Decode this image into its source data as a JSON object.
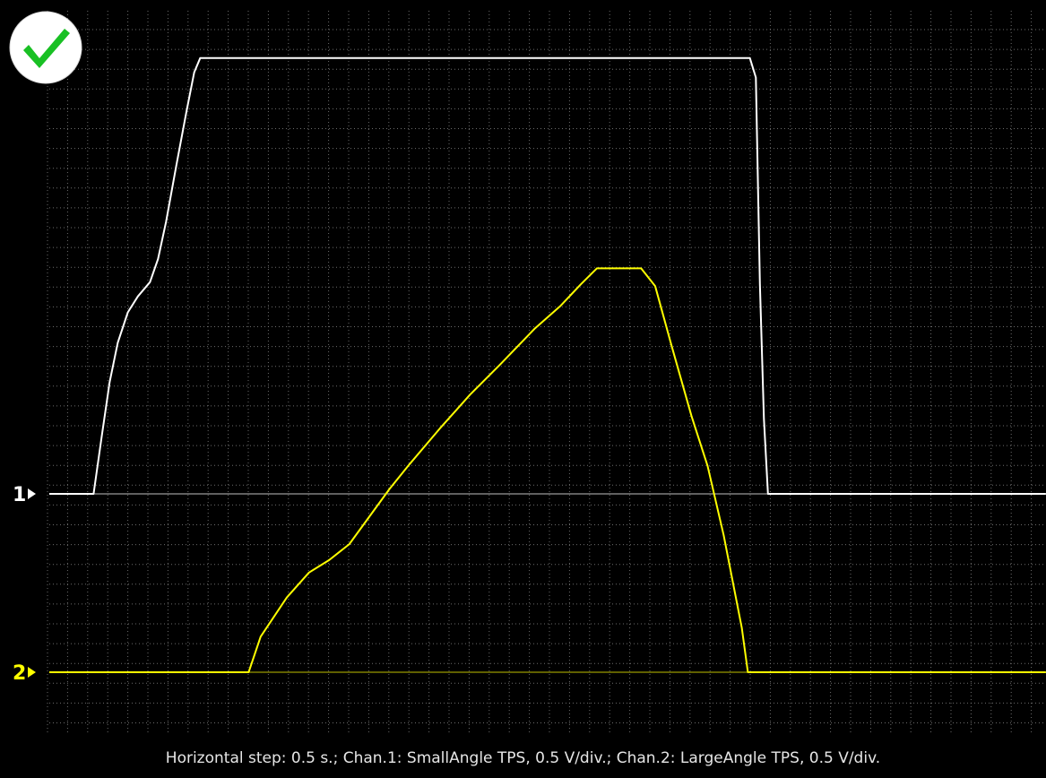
{
  "status": {
    "icon": "checkmark-icon",
    "icon_color": "#19c024",
    "icon_background": "#ffffff"
  },
  "caption": "Horizontal step: 0.5 s.; Chan.1: SmallAngle TPS, 0.5 V/div.; Chan.2: LargeAngle TPS, 0.5 V/div.",
  "colors": {
    "background": "#000000",
    "grid": "#808080",
    "channel_1": "#ffffff",
    "channel_2": "#ffff00"
  },
  "chart_data": {
    "type": "line",
    "grid": true,
    "x_unit": "s",
    "y_unit": "V",
    "horizontal_step": 0.5,
    "volts_per_div": 0.5,
    "x_range": [
      0,
      4.95
    ],
    "series": [
      {
        "name": "SmallAngle TPS",
        "marker": "1",
        "color": "#ffffff",
        "points": [
          [
            0,
            0
          ],
          [
            0.22,
            0
          ],
          [
            0.26,
            0.32
          ],
          [
            0.3,
            0.63
          ],
          [
            0.34,
            0.85
          ],
          [
            0.39,
            1.02
          ],
          [
            0.44,
            1.11
          ],
          [
            0.5,
            1.19
          ],
          [
            0.54,
            1.32
          ],
          [
            0.58,
            1.53
          ],
          [
            0.63,
            1.84
          ],
          [
            0.68,
            2.14
          ],
          [
            0.72,
            2.37
          ],
          [
            0.75,
            2.45
          ],
          [
            0.89,
            2.45
          ],
          [
            3.19,
            2.45
          ],
          [
            3.33,
            2.45
          ],
          [
            3.48,
            2.45
          ],
          [
            3.51,
            2.34
          ],
          [
            3.53,
            1.18
          ],
          [
            3.55,
            0.42
          ],
          [
            3.57,
            0
          ],
          [
            4.95,
            0
          ]
        ]
      },
      {
        "name": "LargeAngle TPS",
        "marker": "2",
        "color": "#ffff00",
        "points": [
          [
            0,
            0
          ],
          [
            0.99,
            0
          ],
          [
            1.05,
            0.2
          ],
          [
            1.18,
            0.42
          ],
          [
            1.29,
            0.56
          ],
          [
            1.39,
            0.63
          ],
          [
            1.49,
            0.72
          ],
          [
            1.69,
            1.03
          ],
          [
            1.79,
            1.17
          ],
          [
            1.94,
            1.37
          ],
          [
            2.09,
            1.56
          ],
          [
            2.24,
            1.73
          ],
          [
            2.41,
            1.93
          ],
          [
            2.54,
            2.06
          ],
          [
            2.64,
            2.18
          ],
          [
            2.72,
            2.27
          ],
          [
            2.8,
            2.27
          ],
          [
            2.94,
            2.27
          ],
          [
            3.01,
            2.17
          ],
          [
            3.09,
            1.84
          ],
          [
            3.19,
            1.44
          ],
          [
            3.27,
            1.16
          ],
          [
            3.35,
            0.77
          ],
          [
            3.44,
            0.25
          ],
          [
            3.47,
            0
          ],
          [
            4.95,
            0
          ]
        ]
      }
    ]
  }
}
